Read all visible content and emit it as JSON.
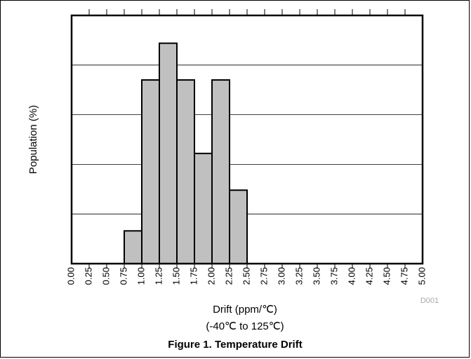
{
  "chart_data": {
    "type": "bar",
    "xlabel": "Drift (ppm/℃)",
    "xlabel_sub": "(-40℃ to 125℃)",
    "ylabel": "Population (%)",
    "caption": "Figure 1. Temperature Drift",
    "code": "D001",
    "xlim": [
      0,
      5
    ],
    "ylim": [
      0,
      25
    ],
    "grid": true,
    "x_ticks": [
      "0.00",
      "0.25",
      "0.50",
      "0.75",
      "1.00",
      "1.25",
      "1.50",
      "1.75",
      "2.00",
      "2.25",
      "2.50",
      "2.75",
      "3.00",
      "3.25",
      "3.50",
      "3.75",
      "4.00",
      "4.25",
      "4.50",
      "4.75",
      "5.00"
    ],
    "bins": [
      {
        "start": 0.75,
        "end": 1.0,
        "value": 3.3
      },
      {
        "start": 1.0,
        "end": 1.25,
        "value": 18.5
      },
      {
        "start": 1.25,
        "end": 1.5,
        "value": 22.2
      },
      {
        "start": 1.5,
        "end": 1.75,
        "value": 18.5
      },
      {
        "start": 1.75,
        "end": 2.0,
        "value": 11.1
      },
      {
        "start": 2.0,
        "end": 2.25,
        "value": 18.5
      },
      {
        "start": 2.25,
        "end": 2.5,
        "value": 7.4
      }
    ],
    "bar_color": "#c0c0c0"
  }
}
